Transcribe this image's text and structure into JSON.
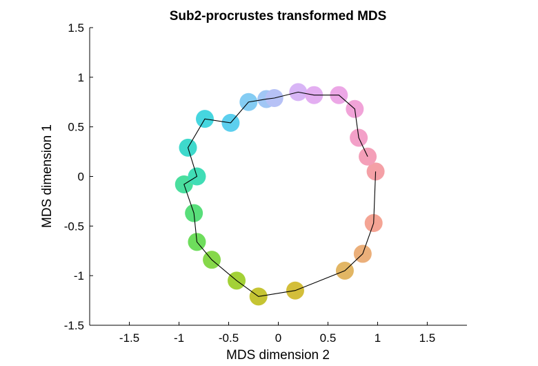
{
  "chart_data": {
    "type": "scatter",
    "title": "Sub2-procrustes transformed MDS",
    "xlabel": "MDS dimension 2",
    "ylabel": "MDS dimension 1",
    "xlim": [
      -1.9,
      1.9
    ],
    "ylim": [
      -1.5,
      1.5
    ],
    "xticks": [
      "-1.5",
      "-1",
      "-0.5",
      "0",
      "0.5",
      "1",
      "1.5"
    ],
    "yticks": [
      "1.5",
      "1",
      "0.5",
      "0",
      "-0.5",
      "-1",
      "-1.5"
    ],
    "grid": false,
    "connected_by_line": true,
    "line_color": "#000000",
    "points": [
      {
        "x": 0.98,
        "y": 0.05,
        "color": "#F4A0A6"
      },
      {
        "x": 0.96,
        "y": -0.47,
        "color": "#F4A494"
      },
      {
        "x": 0.85,
        "y": -0.78,
        "color": "#EBAF7A"
      },
      {
        "x": 0.67,
        "y": -0.95,
        "color": "#E2B664"
      },
      {
        "x": 0.17,
        "y": -1.15,
        "color": "#D3BE3A"
      },
      {
        "x": -0.2,
        "y": -1.21,
        "color": "#C5C433"
      },
      {
        "x": -0.42,
        "y": -1.05,
        "color": "#A3D137"
      },
      {
        "x": -0.67,
        "y": -0.84,
        "color": "#86D84A"
      },
      {
        "x": -0.82,
        "y": -0.66,
        "color": "#6EDD5C"
      },
      {
        "x": -0.85,
        "y": -0.37,
        "color": "#58DE7A"
      },
      {
        "x": -0.95,
        "y": -0.08,
        "color": "#4ADE9E"
      },
      {
        "x": -0.82,
        "y": 0.0,
        "color": "#40DDB6"
      },
      {
        "x": -0.91,
        "y": 0.29,
        "color": "#3ED9CC"
      },
      {
        "x": -0.74,
        "y": 0.58,
        "color": "#46D6DF"
      },
      {
        "x": -0.48,
        "y": 0.54,
        "color": "#5CCFEE"
      },
      {
        "x": -0.3,
        "y": 0.75,
        "color": "#84CCF3"
      },
      {
        "x": -0.12,
        "y": 0.78,
        "color": "#A1C7F5"
      },
      {
        "x": -0.04,
        "y": 0.79,
        "color": "#B6C1F6"
      },
      {
        "x": 0.2,
        "y": 0.85,
        "color": "#D8B5F6"
      },
      {
        "x": 0.36,
        "y": 0.82,
        "color": "#E3AEF1"
      },
      {
        "x": 0.61,
        "y": 0.82,
        "color": "#ECA7E6"
      },
      {
        "x": 0.77,
        "y": 0.68,
        "color": "#F1A3D8"
      },
      {
        "x": 0.81,
        "y": 0.39,
        "color": "#F3A0C8"
      },
      {
        "x": 0.9,
        "y": 0.2,
        "color": "#F49FB8"
      }
    ]
  }
}
